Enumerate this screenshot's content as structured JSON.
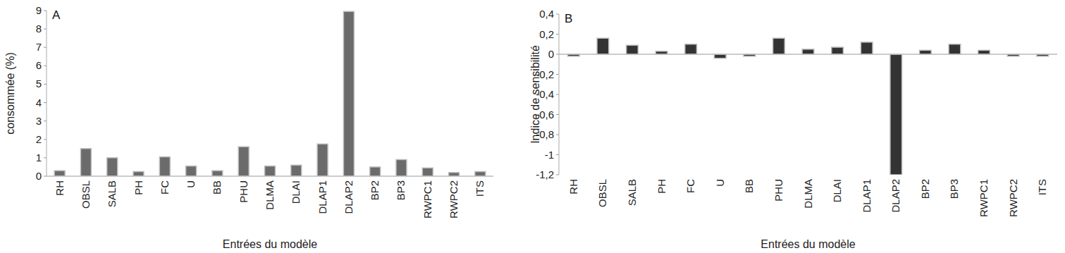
{
  "chart_data": [
    {
      "type": "bar",
      "title": "A",
      "y_label": "consommée (%)",
      "x_label": "Entrées du modèle",
      "categories": [
        "RH",
        "OBSL",
        "SALB",
        "PH",
        "FC",
        "U",
        "BB",
        "PHU",
        "DLMA",
        "DLAI",
        "DLAP1",
        "DLAP2",
        "BP2",
        "BP3",
        "RWPC1",
        "RWPC2",
        "ITS"
      ],
      "values": [
        0.3,
        1.5,
        1.0,
        0.25,
        1.05,
        0.55,
        0.3,
        1.6,
        0.55,
        0.6,
        1.75,
        8.95,
        0.5,
        0.9,
        0.45,
        0.2,
        0.25
      ],
      "color": "#6b6b6b",
      "ylim": [
        0,
        9
      ],
      "yticks": [
        0,
        1,
        2,
        3,
        4,
        5,
        6,
        7,
        8,
        9
      ],
      "grid": false
    },
    {
      "type": "bar",
      "title": "B",
      "y_label": "Indice de sensibilité",
      "x_label": "Entrées du modèle",
      "categories": [
        "RH",
        "OBSL",
        "SALB",
        "PH",
        "FC",
        "U",
        "BB",
        "PHU",
        "DLMA",
        "DLAI",
        "DLAP1",
        "DLAP2",
        "BP2",
        "BP3",
        "RWPC1",
        "RWPC2",
        "ITS"
      ],
      "values": [
        -0.02,
        0.16,
        0.09,
        0.03,
        0.1,
        -0.04,
        -0.02,
        0.16,
        0.05,
        0.07,
        0.12,
        -1.2,
        0.04,
        0.1,
        0.04,
        -0.02,
        -0.02
      ],
      "color": "#333333",
      "ylim": [
        -1.2,
        0.4
      ],
      "yticks": [
        {
          "value": 0.4,
          "label": "0,4"
        },
        {
          "value": 0.2,
          "label": "0,2"
        },
        0,
        {
          "value": -0.2,
          "label": "-0,2"
        },
        {
          "value": -0.4,
          "label": "-0,4"
        },
        {
          "value": -0.6,
          "label": "-0,6"
        },
        {
          "value": -0.8,
          "label": "-0,8"
        },
        -1,
        {
          "value": -1.2,
          "label": "-1,2"
        }
      ],
      "grid": false
    }
  ]
}
